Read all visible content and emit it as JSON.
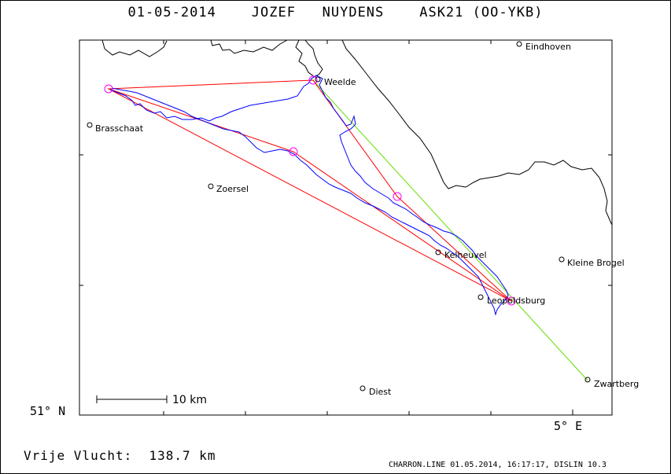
{
  "header": {
    "title": "01-05-2014    JOZEF   NUYDENS    ASK21 (OO-YKB)"
  },
  "axes": {
    "lat_label": "51° N",
    "lon_label": "5° E"
  },
  "scale_bar": {
    "label": "10 km"
  },
  "towns": [
    {
      "name": "Eindhoven"
    },
    {
      "name": "Weelde"
    },
    {
      "name": "Brasschaat"
    },
    {
      "name": "Zoersel"
    },
    {
      "name": "Kelheuvel"
    },
    {
      "name": "Kleine Brogel"
    },
    {
      "name": "Leopoldsburg"
    },
    {
      "name": "Diest"
    },
    {
      "name": "Zwartberg"
    }
  ],
  "footer": {
    "distance_text": "Vrije Vlucht:  138.7 km",
    "software_text": "CHARRON.LINE 01.05.2014, 16:17:17, DISLIN 10.3"
  },
  "colors": {
    "task_line": "#ff0000",
    "turnpoint": "#ff00ff",
    "flight_track": "#0000ff",
    "final_glide": "#66dd00",
    "border": "#000000"
  }
}
